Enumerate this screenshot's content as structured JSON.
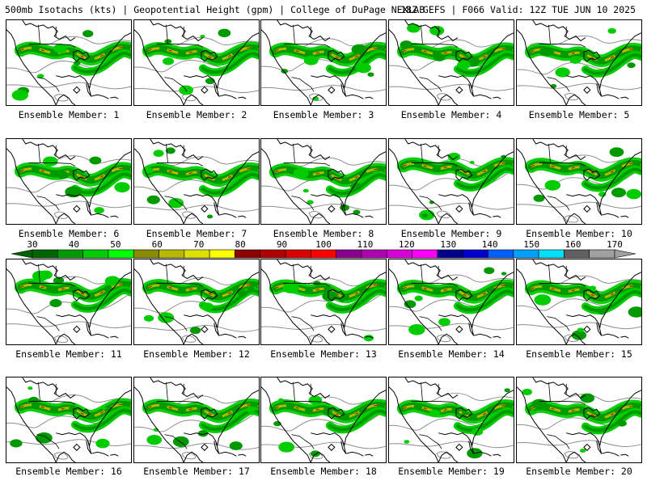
{
  "header": {
    "title": "500mb Isotachs (kts) | Geopotential Height (gpm) | College of DuPage NEXLAB",
    "run_info": "18Z GEFS | F066 Valid: 12Z TUE JUN 10 2025"
  },
  "colorbar": {
    "labels": [
      "30",
      "40",
      "50",
      "60",
      "70",
      "80",
      "90",
      "100",
      "110",
      "120",
      "130",
      "140",
      "150",
      "160",
      "170"
    ],
    "colors": [
      "#006400",
      "#009900",
      "#00cc00",
      "#00ff00",
      "#8b8b00",
      "#b8b800",
      "#e0e000",
      "#ffff00",
      "#8b0000",
      "#b00000",
      "#d80000",
      "#ff0000",
      "#8b008b",
      "#b000b0",
      "#d800d8",
      "#ff00ff",
      "#00008b",
      "#0000cd",
      "#0060ff",
      "#00a0ff",
      "#00e0ff",
      "#606060",
      "#a0a0a0"
    ]
  },
  "members": [
    {
      "label": "Ensemble Member: 1"
    },
    {
      "label": "Ensemble Member: 2"
    },
    {
      "label": "Ensemble Member: 3"
    },
    {
      "label": "Ensemble Member: 4"
    },
    {
      "label": "Ensemble Member: 5"
    },
    {
      "label": "Ensemble Member: 6"
    },
    {
      "label": "Ensemble Member: 7"
    },
    {
      "label": "Ensemble Member: 8"
    },
    {
      "label": "Ensemble Member: 9"
    },
    {
      "label": "Ensemble Member: 10"
    },
    {
      "label": "Ensemble Member: 11"
    },
    {
      "label": "Ensemble Member: 12"
    },
    {
      "label": "Ensemble Member: 13"
    },
    {
      "label": "Ensemble Member: 14"
    },
    {
      "label": "Ensemble Member: 15"
    },
    {
      "label": "Ensemble Member: 16"
    },
    {
      "label": "Ensemble Member: 17"
    },
    {
      "label": "Ensemble Member: 18"
    },
    {
      "label": "Ensemble Member: 19"
    },
    {
      "label": "Ensemble Member: 20"
    }
  ]
}
